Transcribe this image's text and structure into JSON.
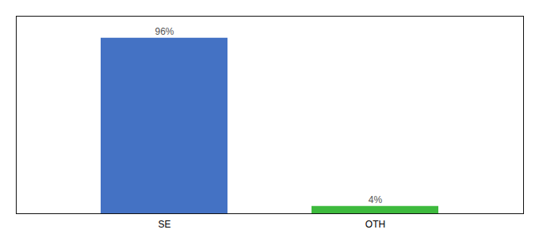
{
  "chart_data": {
    "type": "bar",
    "categories": [
      "SE",
      "OTH"
    ],
    "values": [
      96,
      4
    ],
    "value_labels": [
      "96%",
      "4%"
    ],
    "colors": [
      "#4472c4",
      "#3dba3d"
    ],
    "ylim": [
      0,
      108
    ],
    "data_labels": true,
    "tick_labels": "x",
    "grid": false
  }
}
